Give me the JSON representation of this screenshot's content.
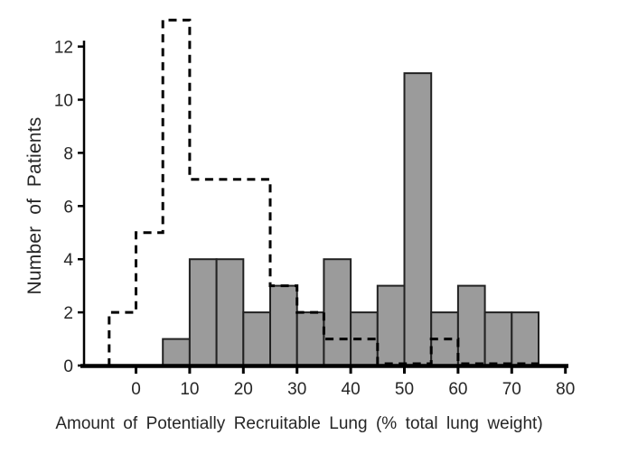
{
  "figure": {
    "background": "#ffffff"
  },
  "chart_data": {
    "type": "bar",
    "subtype": "overlaid-histograms",
    "title": "",
    "xlabel": "Amount of Potentially Recruitable Lung (% total lung weight)",
    "ylabel": "Number of Patients",
    "xlim": [
      -10,
      80
    ],
    "ylim": [
      0,
      13.5
    ],
    "x_ticks": [
      0,
      10,
      20,
      30,
      40,
      50,
      60,
      70,
      80
    ],
    "y_ticks": [
      0,
      2,
      4,
      6,
      8,
      10,
      12
    ],
    "bin_width": 5,
    "grid": false,
    "legend": false,
    "series": [
      {
        "name": "solid gray histogram",
        "style": "filled-bars",
        "first_bin_start": 5,
        "bin_width": 5,
        "values": [
          1,
          4,
          4,
          2,
          3,
          2,
          4,
          2,
          3,
          11,
          2,
          3,
          2,
          2
        ],
        "fill": "#9b9b9b",
        "stroke": "#222222"
      },
      {
        "name": "dashed outline histogram",
        "style": "dashed-step-outline",
        "first_bin_start": -5,
        "bin_width": 5,
        "values": [
          2,
          5,
          13,
          7,
          7,
          7,
          3,
          2,
          1,
          1,
          0,
          0,
          1,
          0,
          0,
          0
        ],
        "stroke": "#000000"
      }
    ],
    "colors": {
      "bar_fill": "#9b9b9b",
      "bar_stroke": "#222222",
      "axis": "#000000",
      "text": "#262626"
    }
  }
}
